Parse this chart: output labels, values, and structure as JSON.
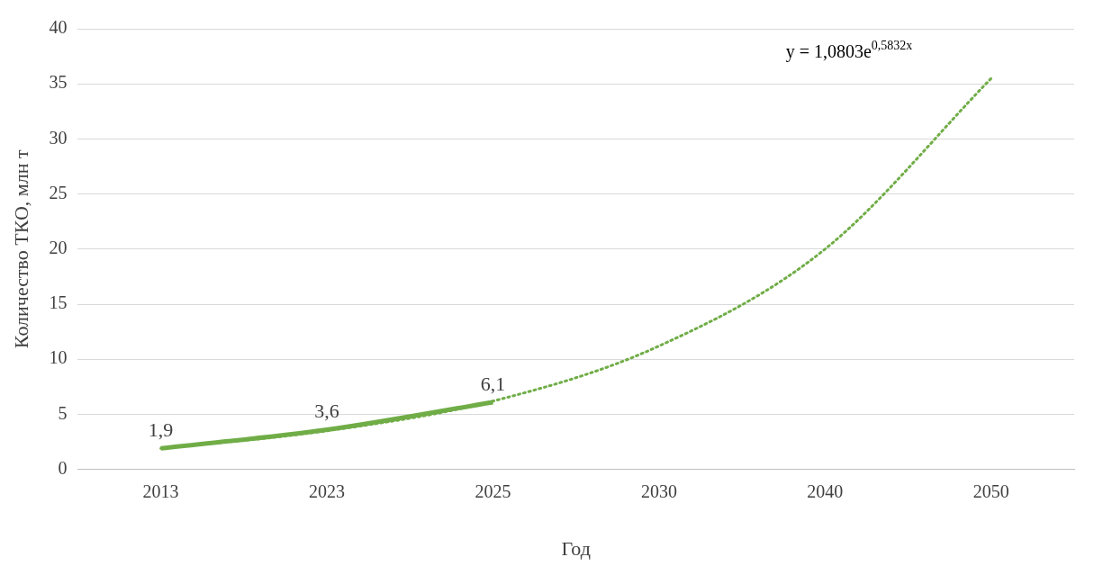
{
  "chart_data": {
    "type": "line",
    "xlabel": "Год",
    "ylabel": "Количество ТКО, млн т",
    "categories": [
      "2013",
      "2023",
      "2025",
      "2030",
      "2040",
      "2050"
    ],
    "series": [
      {
        "color": "#70ad47",
        "values": [
          1.9,
          3.6,
          6.1,
          null,
          null,
          null
        ],
        "line_style": "solid",
        "value_labels": [
          "1,9",
          "3,6",
          "6,1",
          null,
          null,
          null
        ]
      },
      {
        "color": "#70ad47",
        "values": [
          1.9,
          3.5,
          6.2,
          11.2,
          20,
          35.5
        ],
        "line_style": "dotted"
      }
    ],
    "ylim": [
      0,
      40
    ],
    "yticks": [
      0,
      5,
      10,
      15,
      20,
      25,
      30,
      35,
      40
    ],
    "grid": "y",
    "legend": false,
    "marker": "none",
    "annotations": [
      "y = 1,0803e$^{0,5832x}$"
    ]
  }
}
